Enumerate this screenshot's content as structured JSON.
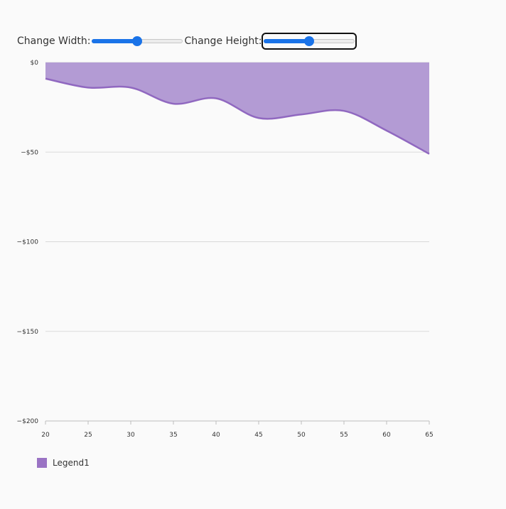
{
  "controls": {
    "width_label": "Change Width:",
    "height_label": "Change Height:",
    "width_value_fraction": 0.5,
    "height_value_fraction": 0.5
  },
  "colors": {
    "area_fill": "#b39bd4",
    "area_line": "#9068c0",
    "grid": "#d9d9d9",
    "slider_accent": "#1a73e8"
  },
  "chart_data": {
    "type": "area",
    "x": [
      20,
      25,
      30,
      35,
      40,
      45,
      50,
      55,
      60,
      65
    ],
    "series": [
      {
        "name": "Legend1",
        "values": [
          -9,
          -14,
          -14,
          -23,
          -20,
          -31,
          -29,
          -27,
          -38,
          -51
        ]
      }
    ],
    "xlim": [
      20,
      65
    ],
    "ylim": [
      -200,
      0
    ],
    "x_ticks": [
      20,
      25,
      30,
      35,
      40,
      45,
      50,
      55,
      60,
      65
    ],
    "y_ticks": [
      0,
      -50,
      -100,
      -150,
      -200
    ],
    "y_tick_labels": [
      "$0",
      "−$50",
      "−$100",
      "−$150",
      "−$200"
    ],
    "grid": true,
    "legend_position": "bottom-left"
  },
  "legend": {
    "label": "Legend1"
  }
}
